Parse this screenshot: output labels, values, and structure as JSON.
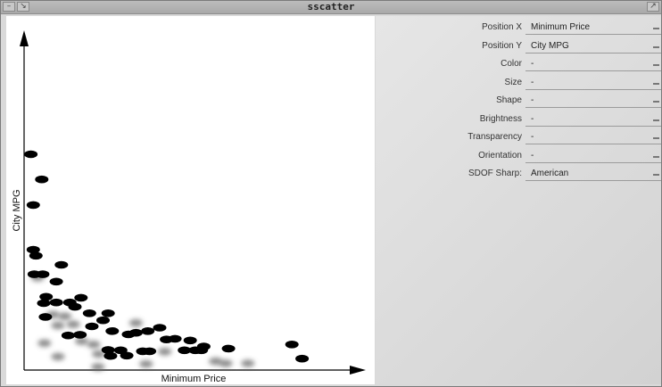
{
  "window": {
    "title": "sscatter"
  },
  "controls": [
    {
      "label": "Position X",
      "value": "Minimum Price"
    },
    {
      "label": "Position Y",
      "value": "City MPG"
    },
    {
      "label": "Color",
      "value": "-"
    },
    {
      "label": "Size",
      "value": "-"
    },
    {
      "label": "Shape",
      "value": "-"
    },
    {
      "label": "Brightness",
      "value": "-"
    },
    {
      "label": "Transparency",
      "value": "-"
    },
    {
      "label": "Orientation",
      "value": "-"
    },
    {
      "label": "SDOF Sharp:",
      "value": "American"
    }
  ],
  "chart_data": {
    "type": "scatter",
    "xlabel": "Minimum Price",
    "ylabel": "City MPG",
    "xlim": [
      0,
      100
    ],
    "ylim": [
      0,
      100
    ],
    "grid": false,
    "colors": {
      "sharp": "#000000",
      "blurred": "#6a6a6a"
    },
    "points": [
      {
        "x": 2.0,
        "y": 64.2,
        "focus": "sharp"
      },
      {
        "x": 5.2,
        "y": 56.7,
        "focus": "sharp"
      },
      {
        "x": 2.7,
        "y": 49.1,
        "focus": "sharp"
      },
      {
        "x": 2.7,
        "y": 35.8,
        "focus": "sharp"
      },
      {
        "x": 3.5,
        "y": 34.0,
        "focus": "sharp"
      },
      {
        "x": 3.0,
        "y": 28.5,
        "focus": "sharp"
      },
      {
        "x": 5.5,
        "y": 28.5,
        "focus": "sharp"
      },
      {
        "x": 4.0,
        "y": 27.5,
        "focus": "blurred"
      },
      {
        "x": 11.0,
        "y": 31.3,
        "focus": "sharp"
      },
      {
        "x": 9.5,
        "y": 26.3,
        "focus": "sharp"
      },
      {
        "x": 6.5,
        "y": 21.8,
        "focus": "sharp"
      },
      {
        "x": 5.8,
        "y": 19.9,
        "focus": "sharp"
      },
      {
        "x": 9.5,
        "y": 20.1,
        "focus": "sharp"
      },
      {
        "x": 13.5,
        "y": 20.1,
        "focus": "sharp"
      },
      {
        "x": 16.8,
        "y": 21.5,
        "focus": "sharp"
      },
      {
        "x": 15.0,
        "y": 18.8,
        "focus": "sharp"
      },
      {
        "x": 19.3,
        "y": 16.9,
        "focus": "sharp"
      },
      {
        "x": 24.8,
        "y": 16.9,
        "focus": "sharp"
      },
      {
        "x": 23.3,
        "y": 14.8,
        "focus": "sharp"
      },
      {
        "x": 6.3,
        "y": 15.8,
        "focus": "sharp"
      },
      {
        "x": 10.0,
        "y": 13.3,
        "focus": "blurred"
      },
      {
        "x": 14.5,
        "y": 13.6,
        "focus": "blurred"
      },
      {
        "x": 20.0,
        "y": 13.0,
        "focus": "sharp"
      },
      {
        "x": 26.0,
        "y": 11.6,
        "focus": "sharp"
      },
      {
        "x": 30.8,
        "y": 10.6,
        "focus": "sharp"
      },
      {
        "x": 33.0,
        "y": 11.1,
        "focus": "sharp"
      },
      {
        "x": 36.5,
        "y": 11.6,
        "focus": "sharp"
      },
      {
        "x": 40.0,
        "y": 12.6,
        "focus": "sharp"
      },
      {
        "x": 13.0,
        "y": 10.3,
        "focus": "sharp"
      },
      {
        "x": 16.5,
        "y": 10.5,
        "focus": "sharp"
      },
      {
        "x": 42.0,
        "y": 9.1,
        "focus": "sharp"
      },
      {
        "x": 44.5,
        "y": 9.3,
        "focus": "sharp"
      },
      {
        "x": 49.0,
        "y": 8.8,
        "focus": "sharp"
      },
      {
        "x": 53.0,
        "y": 7.0,
        "focus": "sharp"
      },
      {
        "x": 52.3,
        "y": 5.9,
        "focus": "sharp"
      },
      {
        "x": 47.3,
        "y": 5.9,
        "focus": "sharp"
      },
      {
        "x": 50.5,
        "y": 5.9,
        "focus": "sharp"
      },
      {
        "x": 60.3,
        "y": 6.4,
        "focus": "sharp"
      },
      {
        "x": 24.8,
        "y": 6.0,
        "focus": "sharp"
      },
      {
        "x": 28.5,
        "y": 5.9,
        "focus": "sharp"
      },
      {
        "x": 35.0,
        "y": 5.6,
        "focus": "sharp"
      },
      {
        "x": 37.0,
        "y": 5.6,
        "focus": "sharp"
      },
      {
        "x": 25.5,
        "y": 4.2,
        "focus": "sharp"
      },
      {
        "x": 30.3,
        "y": 4.3,
        "focus": "sharp"
      },
      {
        "x": 79.0,
        "y": 7.6,
        "focus": "sharp"
      },
      {
        "x": 82.0,
        "y": 3.4,
        "focus": "sharp"
      },
      {
        "x": 20.5,
        "y": 7.6,
        "focus": "blurred"
      },
      {
        "x": 22.0,
        "y": 4.8,
        "focus": "blurred"
      },
      {
        "x": 21.8,
        "y": 0.9,
        "focus": "blurred"
      },
      {
        "x": 36.0,
        "y": 1.8,
        "focus": "blurred"
      },
      {
        "x": 56.5,
        "y": 2.6,
        "focus": "blurred"
      },
      {
        "x": 59.5,
        "y": 2.0,
        "focus": "blurred"
      },
      {
        "x": 66.0,
        "y": 2.0,
        "focus": "blurred"
      },
      {
        "x": 17.0,
        "y": 8.6,
        "focus": "blurred"
      },
      {
        "x": 8.5,
        "y": 16.5,
        "focus": "blurred"
      },
      {
        "x": 12.0,
        "y": 16.0,
        "focus": "blurred"
      },
      {
        "x": 6.0,
        "y": 8.0,
        "focus": "blurred"
      },
      {
        "x": 10.0,
        "y": 4.0,
        "focus": "blurred"
      },
      {
        "x": 33.0,
        "y": 14.0,
        "focus": "blurred"
      },
      {
        "x": 41.5,
        "y": 5.5,
        "focus": "blurred"
      }
    ]
  }
}
